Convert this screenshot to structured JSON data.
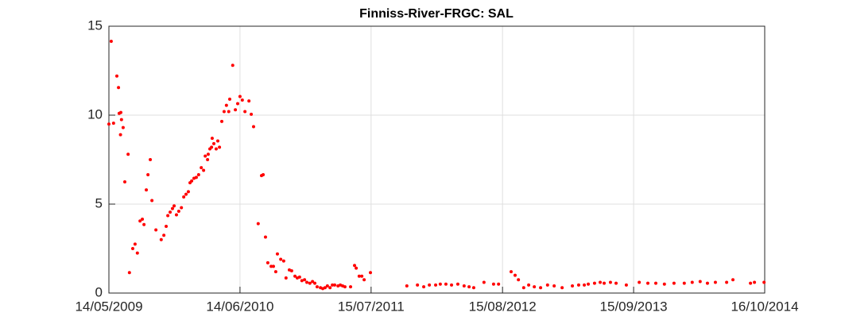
{
  "chart_data": {
    "type": "scatter",
    "title": "Finniss-River-FRGC: SAL",
    "color": "#ff0000",
    "grid": true,
    "x": [
      "2009-05-14",
      "2009-05-21",
      "2009-05-28",
      "2009-06-07",
      "2009-06-12",
      "2009-06-14",
      "2009-06-19",
      "2009-06-21",
      "2009-06-18",
      "2009-06-26",
      "2009-07-01",
      "2009-07-11",
      "2009-07-15",
      "2009-07-25",
      "2009-08-01",
      "2009-08-08",
      "2009-08-16",
      "2009-08-23",
      "2009-08-28",
      "2009-09-04",
      "2009-09-09",
      "2009-09-16",
      "2009-09-21",
      "2009-10-03",
      "2009-10-19",
      "2009-10-27",
      "2009-11-03",
      "2009-11-08",
      "2009-11-15",
      "2009-11-22",
      "2009-11-27",
      "2009-12-04",
      "2009-12-11",
      "2009-12-19",
      "2009-12-26",
      "2010-01-02",
      "2010-01-09",
      "2010-01-14",
      "2010-01-19",
      "2010-01-26",
      "2010-02-02",
      "2010-02-09",
      "2010-02-17",
      "2010-02-24",
      "2010-03-01",
      "2010-03-08",
      "2010-03-10",
      "2010-03-15",
      "2010-03-20",
      "2010-03-22",
      "2010-03-27",
      "2010-04-03",
      "2010-04-08",
      "2010-04-13",
      "2010-04-20",
      "2010-04-27",
      "2010-05-04",
      "2010-05-11",
      "2010-05-14",
      "2010-05-23",
      "2010-05-31",
      "2010-06-07",
      "2010-06-14",
      "2010-06-21",
      "2010-06-29",
      "2010-07-11",
      "2010-07-18",
      "2010-07-25",
      "2010-08-08",
      "2010-08-18",
      "2010-08-23",
      "2010-08-30",
      "2010-09-06",
      "2010-09-16",
      "2010-09-23",
      "2010-09-30",
      "2010-10-05",
      "2010-10-15",
      "2010-10-24",
      "2010-10-31",
      "2010-11-10",
      "2010-11-17",
      "2010-11-27",
      "2010-12-04",
      "2010-12-11",
      "2010-12-18",
      "2010-12-26",
      "2011-01-02",
      "2011-01-11",
      "2011-01-19",
      "2011-01-26",
      "2011-02-02",
      "2011-02-12",
      "2011-02-19",
      "2011-02-26",
      "2011-03-05",
      "2011-03-13",
      "2011-03-20",
      "2011-03-27",
      "2011-04-06",
      "2011-04-13",
      "2011-04-20",
      "2011-04-27",
      "2011-05-14",
      "2011-05-26",
      "2011-05-31",
      "2011-06-09",
      "2011-06-17",
      "2011-06-24",
      "2011-07-13",
      "2011-10-31",
      "2011-12-02",
      "2011-12-21",
      "2012-01-07",
      "2012-01-26",
      "2012-02-09",
      "2012-02-26",
      "2012-03-14",
      "2012-04-02",
      "2012-04-21",
      "2012-05-06",
      "2012-05-20",
      "2012-06-20",
      "2012-07-19",
      "2012-08-03",
      "2012-09-10",
      "2012-09-22",
      "2012-10-02",
      "2012-10-18",
      "2012-11-02",
      "2012-11-19",
      "2012-12-08",
      "2012-12-29",
      "2013-01-18",
      "2013-02-11",
      "2013-03-14",
      "2013-04-02",
      "2013-04-19",
      "2013-05-01",
      "2013-05-20",
      "2013-06-06",
      "2013-06-18",
      "2013-07-07",
      "2013-07-24",
      "2013-08-24",
      "2013-10-02",
      "2013-10-28",
      "2013-11-21",
      "2013-12-17",
      "2014-01-15",
      "2014-02-15",
      "2014-03-11",
      "2014-04-04",
      "2014-04-26",
      "2014-05-20",
      "2014-06-23",
      "2014-07-12",
      "2014-09-03",
      "2014-09-15",
      "2014-10-14"
    ],
    "values": [
      9.5,
      14.15,
      9.55,
      12.2,
      11.55,
      10.1,
      10.15,
      9.75,
      8.9,
      9.3,
      6.25,
      7.8,
      1.15,
      2.5,
      2.75,
      2.25,
      4.05,
      4.15,
      3.85,
      5.8,
      6.65,
      7.5,
      5.2,
      3.55,
      3,
      3.25,
      3.75,
      4.35,
      4.55,
      4.75,
      4.9,
      4.4,
      4.6,
      4.8,
      5.4,
      5.55,
      5.7,
      6.2,
      6.3,
      6.45,
      6.5,
      6.65,
      7.05,
      6.9,
      7.7,
      7.5,
      7.8,
      8.1,
      8.2,
      8.7,
      8.4,
      8.1,
      8.55,
      8.2,
      9.65,
      10.2,
      10.55,
      10.2,
      10.9,
      12.8,
      10.3,
      10.65,
      11.05,
      10.85,
      10.2,
      10.8,
      10.05,
      9.35,
      3.9,
      6.6,
      6.65,
      3.15,
      1.7,
      1.5,
      1.5,
      1.2,
      2.2,
      1.9,
      1.8,
      0.85,
      1.3,
      1.25,
      0.95,
      0.85,
      0.9,
      0.7,
      0.75,
      0.6,
      0.55,
      0.65,
      0.55,
      0.35,
      0.3,
      0.25,
      0.3,
      0.4,
      0.3,
      0.45,
      0.45,
      0.4,
      0.45,
      0.4,
      0.35,
      0.35,
      1.55,
      1.4,
      0.95,
      0.95,
      0.75,
      1.15,
      0.4,
      0.45,
      0.35,
      0.45,
      0.45,
      0.5,
      0.5,
      0.45,
      0.5,
      0.4,
      0.35,
      0.3,
      0.6,
      0.5,
      0.5,
      1.2,
      1,
      0.75,
      0.3,
      0.45,
      0.35,
      0.3,
      0.45,
      0.4,
      0.3,
      0.4,
      0.45,
      0.45,
      0.5,
      0.55,
      0.6,
      0.55,
      0.6,
      0.55,
      0.45,
      0.6,
      0.55,
      0.55,
      0.5,
      0.55,
      0.55,
      0.6,
      0.65,
      0.55,
      0.6,
      0.6,
      0.75,
      0.55,
      0.6,
      0.6
    ],
    "xlim": [
      "2009-05-14",
      "2014-10-16"
    ],
    "xticks": [
      {
        "value": "2009-05-14",
        "label": "14/05/2009"
      },
      {
        "value": "2010-06-14",
        "label": "14/06/2010"
      },
      {
        "value": "2011-07-15",
        "label": "15/07/2011"
      },
      {
        "value": "2012-08-15",
        "label": "15/08/2012"
      },
      {
        "value": "2013-09-15",
        "label": "15/09/2013"
      },
      {
        "value": "2014-10-16",
        "label": "16/10/2014"
      }
    ],
    "ylim": [
      0,
      15
    ],
    "yticks": [
      0,
      5,
      10,
      15
    ]
  }
}
